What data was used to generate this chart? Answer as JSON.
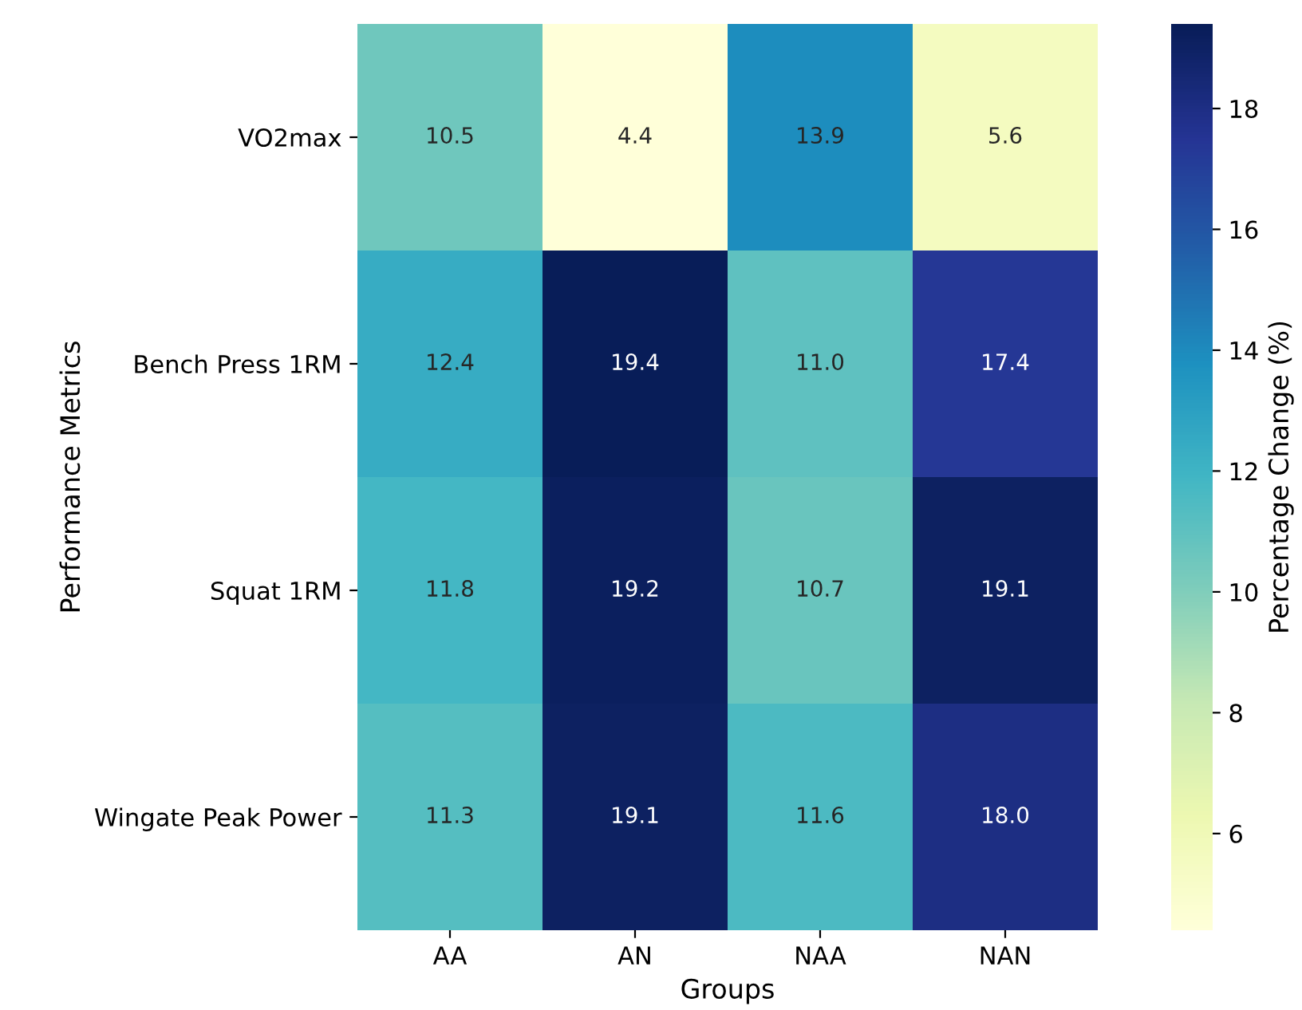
{
  "chart_data": {
    "type": "heatmap",
    "xlabel": "Groups",
    "ylabel": "Performance Metrics",
    "clabel": "Percentage Change (%)",
    "categories": [
      "AA",
      "AN",
      "NAA",
      "NAN"
    ],
    "y_categories": [
      "VO2max",
      "Bench Press 1RM",
      "Squat 1RM",
      "Wingate Peak Power"
    ],
    "cells": [
      [
        10.5,
        4.4,
        13.9,
        5.6
      ],
      [
        12.4,
        19.4,
        11.0,
        17.4
      ],
      [
        11.8,
        19.2,
        10.7,
        19.1
      ],
      [
        11.3,
        19.1,
        11.6,
        18.0
      ]
    ],
    "cell_labels": [
      [
        "10.5",
        "4.4",
        "13.9",
        "5.6"
      ],
      [
        "12.4",
        "19.4",
        "11.0",
        "17.4"
      ],
      [
        "11.8",
        "19.2",
        "10.7",
        "19.1"
      ],
      [
        "11.3",
        "19.1",
        "11.6",
        "18.0"
      ]
    ],
    "clim": [
      4.4,
      19.4
    ],
    "cticks": [
      6,
      8,
      10,
      12,
      14,
      16,
      18
    ]
  }
}
